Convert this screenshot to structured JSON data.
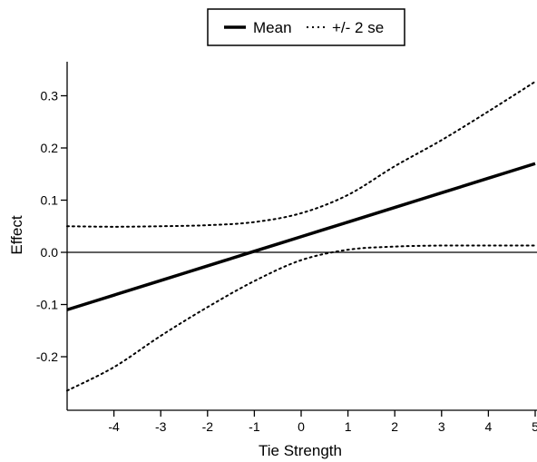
{
  "chart_data": {
    "type": "line",
    "xlabel": "Tie Strength",
    "ylabel": "Effect",
    "xlim": [
      -5,
      5
    ],
    "ylim": [
      -0.27,
      0.37
    ],
    "xticks": [
      -4,
      -3,
      -2,
      -1,
      0,
      1,
      2,
      3,
      4,
      5
    ],
    "yticks": [
      -0.2,
      -0.1,
      0.0,
      0.1,
      0.2,
      0.3
    ],
    "x_tick_labels": [
      "-4",
      "-3",
      "-2",
      "-1",
      "0",
      "1",
      "2",
      "3",
      "4",
      "5"
    ],
    "y_tick_labels": [
      "-0.2",
      "-0.1",
      "0.0",
      "0.1",
      "0.2",
      "0.3"
    ],
    "reference_line": 0.0,
    "legend": {
      "placement": "top-center",
      "entries": [
        {
          "label": "Mean",
          "style": "solid"
        },
        {
          "label": "+/- 2 se",
          "style": "dotted"
        }
      ]
    },
    "x": [
      -5,
      -4,
      -3,
      -2,
      -1,
      0,
      1,
      2,
      3,
      4,
      5
    ],
    "series": [
      {
        "name": "Mean",
        "style": "solid",
        "values": [
          -0.11,
          -0.082,
          -0.054,
          -0.026,
          0.002,
          0.03,
          0.058,
          0.086,
          0.114,
          0.142,
          0.17
        ]
      },
      {
        "name": "+/- 2 se",
        "style": "dotted",
        "band": "upper",
        "values": [
          0.05,
          0.049,
          0.05,
          0.052,
          0.058,
          0.075,
          0.11,
          0.165,
          0.215,
          0.27,
          0.327
        ]
      },
      {
        "name": "+/- 2 se",
        "style": "dotted",
        "band": "lower",
        "values": [
          -0.265,
          -0.22,
          -0.16,
          -0.105,
          -0.055,
          -0.015,
          0.005,
          0.011,
          0.013,
          0.013,
          0.013
        ]
      }
    ]
  }
}
